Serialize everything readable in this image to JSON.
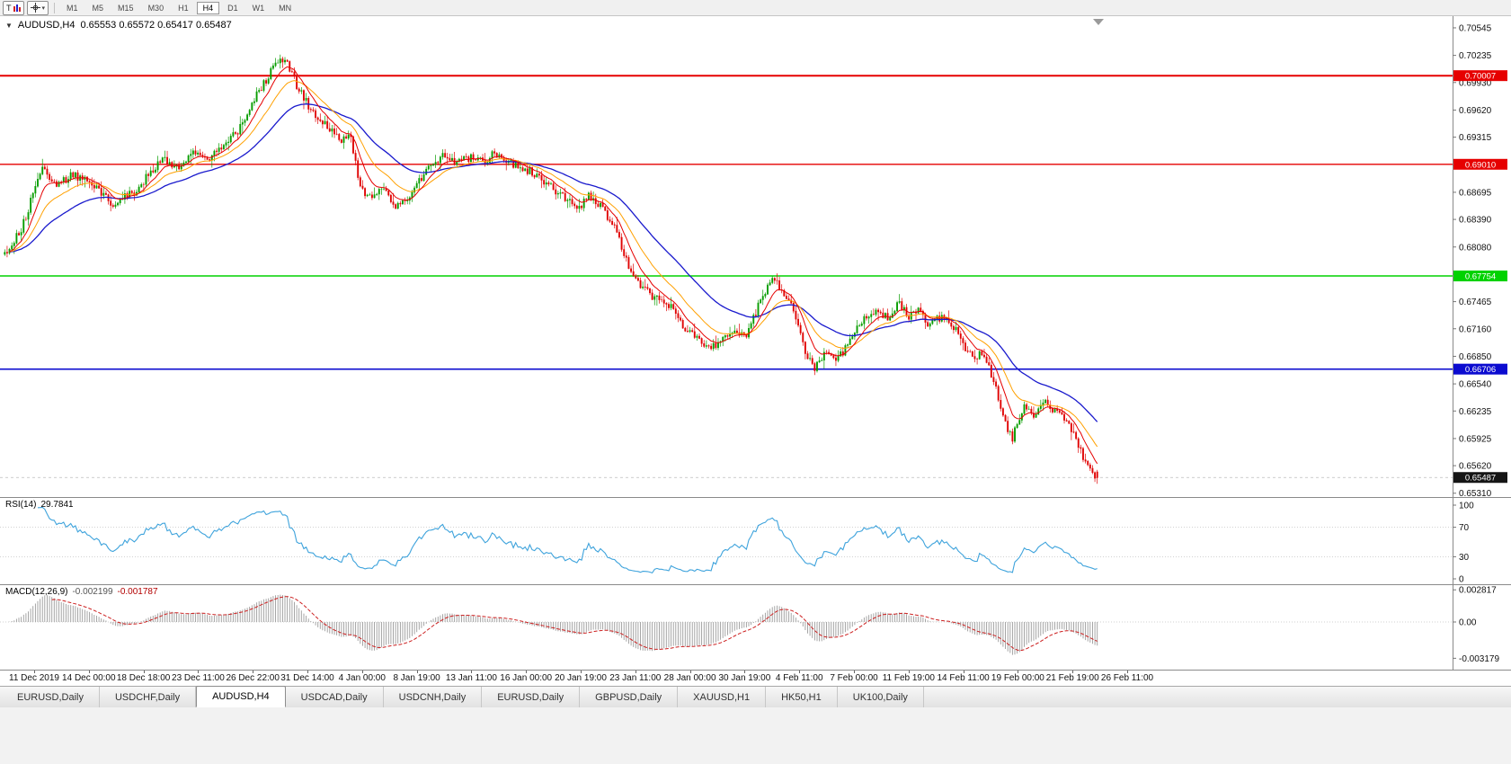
{
  "toolbar": {
    "templates_label": "T",
    "dropdown_glyph": "▾",
    "timeframes": [
      "M1",
      "M5",
      "M15",
      "M30",
      "H1",
      "H4",
      "D1",
      "W1",
      "MN"
    ],
    "active_timeframe": "H4"
  },
  "chart": {
    "title": {
      "collapse_glyph": "▼",
      "symbol": "AUDUSD,H4",
      "ohlc": "0.65553 0.65572 0.65417 0.65487"
    },
    "price_axis_labels": [
      "0.70545",
      "0.70235",
      "0.69930",
      "0.69620",
      "0.69315",
      "0.69005",
      "0.68695",
      "0.68390",
      "0.68080",
      "0.67775",
      "0.67465",
      "0.67160",
      "0.66850",
      "0.66540",
      "0.66235",
      "0.65925",
      "0.65620",
      "0.65310"
    ],
    "hlines": [
      {
        "price": 0.70007,
        "label": "0.70007",
        "color": "#e60000",
        "width": 2
      },
      {
        "price": 0.6901,
        "label": "0.69010",
        "color": "#e60000",
        "width": 1.3
      },
      {
        "price": 0.67754,
        "label": "0.67754",
        "color": "#00d200",
        "width": 1.6
      },
      {
        "price": 0.66706,
        "label": "0.66706",
        "color": "#0b0bd0",
        "width": 1.6
      }
    ],
    "current_price": {
      "value": 0.65487,
      "label": "0.65487",
      "box_color": "#151515"
    },
    "time_axis": {
      "labels": [
        "11 Dec 2019",
        "14 Dec 00:00",
        "18 Dec 18:00",
        "23 Dec 11:00",
        "26 Dec 22:00",
        "31 Dec 14:00",
        "4 Jan 00:00",
        "8 Jan 19:00",
        "13 Jan 11:00",
        "16 Jan 00:00",
        "20 Jan 19:00",
        "23 Jan 11:00",
        "28 Jan 00:00",
        "30 Jan 19:00",
        "4 Feb 11:00",
        "7 Feb 00:00",
        "11 Feb 19:00",
        "14 Feb 11:00",
        "19 Feb 00:00",
        "21 Feb 19:00",
        "26 Feb 11:00"
      ]
    }
  },
  "chart_data": {
    "type": "candlestick",
    "symbol": "AUDUSD",
    "timeframe": "H4",
    "last_ohlc": {
      "open": 0.65553,
      "high": 0.65572,
      "low": 0.65417,
      "close": 0.65487
    },
    "num_candles": 465,
    "seed": 20,
    "y_range": [
      0.65267,
      0.70676
    ],
    "price_path": [
      [
        0,
        0.68
      ],
      [
        0.015,
        0.6828
      ],
      [
        0.034,
        0.6896
      ],
      [
        0.048,
        0.6878
      ],
      [
        0.062,
        0.689
      ],
      [
        0.08,
        0.6878
      ],
      [
        0.099,
        0.6856
      ],
      [
        0.12,
        0.6872
      ],
      [
        0.144,
        0.6908
      ],
      [
        0.16,
        0.6898
      ],
      [
        0.173,
        0.6917
      ],
      [
        0.188,
        0.6908
      ],
      [
        0.202,
        0.6922
      ],
      [
        0.215,
        0.6942
      ],
      [
        0.227,
        0.6972
      ],
      [
        0.24,
        0.6998
      ],
      [
        0.251,
        0.7022
      ],
      [
        0.259,
        0.7015
      ],
      [
        0.268,
        0.6988
      ],
      [
        0.282,
        0.6958
      ],
      [
        0.296,
        0.6944
      ],
      [
        0.308,
        0.693
      ],
      [
        0.317,
        0.6934
      ],
      [
        0.323,
        0.6886
      ],
      [
        0.333,
        0.6862
      ],
      [
        0.347,
        0.6874
      ],
      [
        0.358,
        0.6852
      ],
      [
        0.373,
        0.6868
      ],
      [
        0.387,
        0.6898
      ],
      [
        0.4,
        0.691
      ],
      [
        0.415,
        0.6903
      ],
      [
        0.428,
        0.691
      ],
      [
        0.44,
        0.6904
      ],
      [
        0.448,
        0.6916
      ],
      [
        0.461,
        0.6902
      ],
      [
        0.473,
        0.6899
      ],
      [
        0.487,
        0.6888
      ],
      [
        0.497,
        0.6878
      ],
      [
        0.514,
        0.6862
      ],
      [
        0.526,
        0.685
      ],
      [
        0.534,
        0.6868
      ],
      [
        0.547,
        0.6852
      ],
      [
        0.557,
        0.6833
      ],
      [
        0.571,
        0.6788
      ],
      [
        0.584,
        0.6762
      ],
      [
        0.596,
        0.675
      ],
      [
        0.61,
        0.674
      ],
      [
        0.622,
        0.6718
      ],
      [
        0.637,
        0.6704
      ],
      [
        0.647,
        0.6694
      ],
      [
        0.657,
        0.6706
      ],
      [
        0.667,
        0.6714
      ],
      [
        0.678,
        0.6708
      ],
      [
        0.692,
        0.6748
      ],
      [
        0.703,
        0.6773
      ],
      [
        0.713,
        0.6758
      ],
      [
        0.722,
        0.6738
      ],
      [
        0.732,
        0.6692
      ],
      [
        0.742,
        0.6672
      ],
      [
        0.752,
        0.669
      ],
      [
        0.762,
        0.668
      ],
      [
        0.772,
        0.67
      ],
      [
        0.787,
        0.6728
      ],
      [
        0.797,
        0.6738
      ],
      [
        0.808,
        0.6728
      ],
      [
        0.818,
        0.6744
      ],
      [
        0.828,
        0.673
      ],
      [
        0.837,
        0.6736
      ],
      [
        0.847,
        0.672
      ],
      [
        0.857,
        0.673
      ],
      [
        0.867,
        0.6722
      ],
      [
        0.877,
        0.67
      ],
      [
        0.887,
        0.6682
      ],
      [
        0.896,
        0.669
      ],
      [
        0.904,
        0.6662
      ],
      [
        0.914,
        0.6618
      ],
      [
        0.922,
        0.6592
      ],
      [
        0.933,
        0.663
      ],
      [
        0.943,
        0.6618
      ],
      [
        0.952,
        0.6634
      ],
      [
        0.962,
        0.6622
      ],
      [
        0.972,
        0.6616
      ],
      [
        0.982,
        0.6586
      ],
      [
        0.99,
        0.6562
      ],
      [
        1,
        0.65487
      ]
    ],
    "colors": {
      "up": "#089d00",
      "down": "#e00404",
      "ma_fast": "#e50000",
      "ma_mid": "#ffa000",
      "ma_slow": "#1a1acd"
    }
  },
  "rsi_panel": {
    "title": "RSI(14)",
    "value": "29.7841",
    "period": 14,
    "levels": [
      100,
      70,
      30,
      0
    ],
    "line_color": "#3ea3dc"
  },
  "macd_panel": {
    "title": "MACD(12,26,9)",
    "value_main": "-0.002199",
    "value_signal": "-0.001787",
    "fast": 12,
    "slow": 26,
    "signal_period": 9,
    "axis_labels": [
      "0.002817",
      "0.00",
      "-0.003179"
    ],
    "histogram_color": "#9c9c9c",
    "signal_color": "#cc1f1f"
  },
  "tabbar": {
    "tabs": [
      "EURUSD,Daily",
      "USDCHF,Daily",
      "AUDUSD,H4",
      "USDCAD,Daily",
      "USDCNH,Daily",
      "EURUSD,Daily",
      "GBPUSD,Daily",
      "XAUUSD,H1",
      "HK50,H1",
      "UK100,Daily"
    ],
    "active_index": 2
  }
}
